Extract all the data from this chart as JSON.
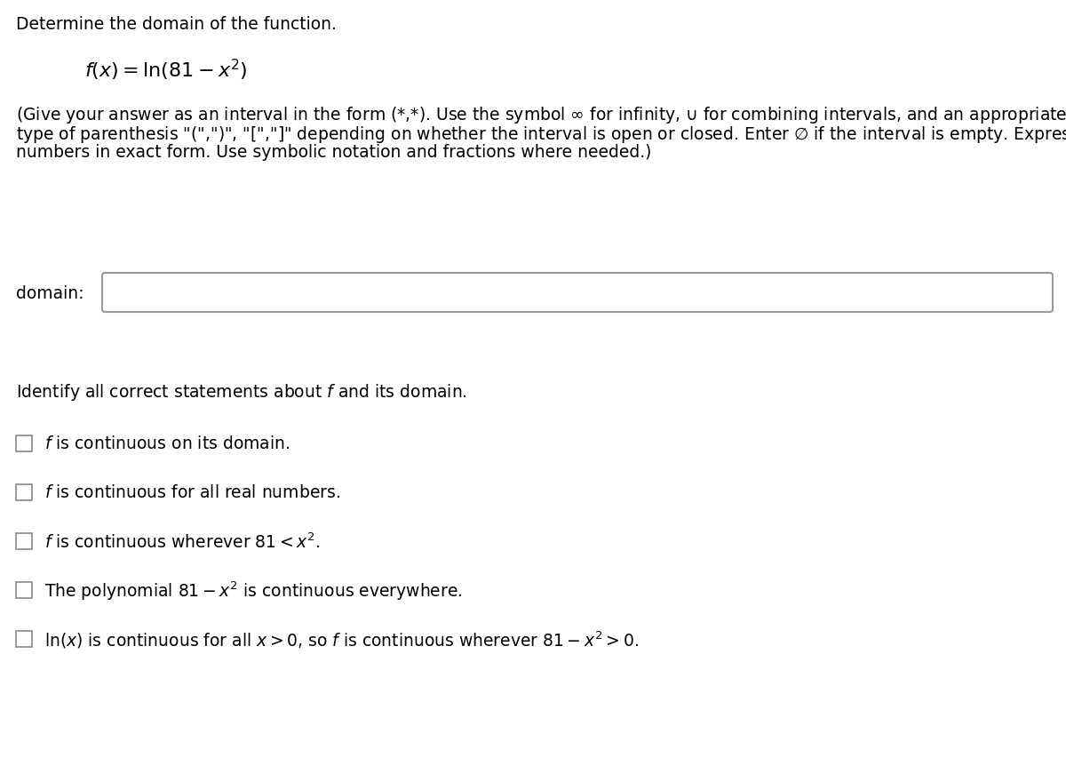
{
  "title": "Determine the domain of the function.",
  "instruction_lines": [
    "(Give your answer as an interval in the form (*,*). Use the symbol ∞ for infinity, ∪ for combining intervals, and an appropriate",
    "type of parenthesis \"(\",\")\", \"[\",\"]\" depending on whether the interval is open or closed. Enter Ø if the interval is empty. Express",
    "numbers in exact form. Use symbolic notation and fractions where needed.)"
  ],
  "domain_label": "domain:",
  "identify_label": "Identify all correct statements about $f$ and its domain.",
  "checkbox_texts": [
    "$f$ is continuous on its domain.",
    "$f$ is continuous for all real numbers.",
    "$f$ is continuous wherever $81 < x^2$.",
    "The polynomial $81 - x^2$ is continuous everywhere.",
    "$\\ln(x)$ is continuous for all $x > 0$, so $f$ is continuous wherever $81 - x^2 > 0$."
  ],
  "background_color": "#ffffff",
  "text_color": "#000000",
  "font_size": 13.5
}
